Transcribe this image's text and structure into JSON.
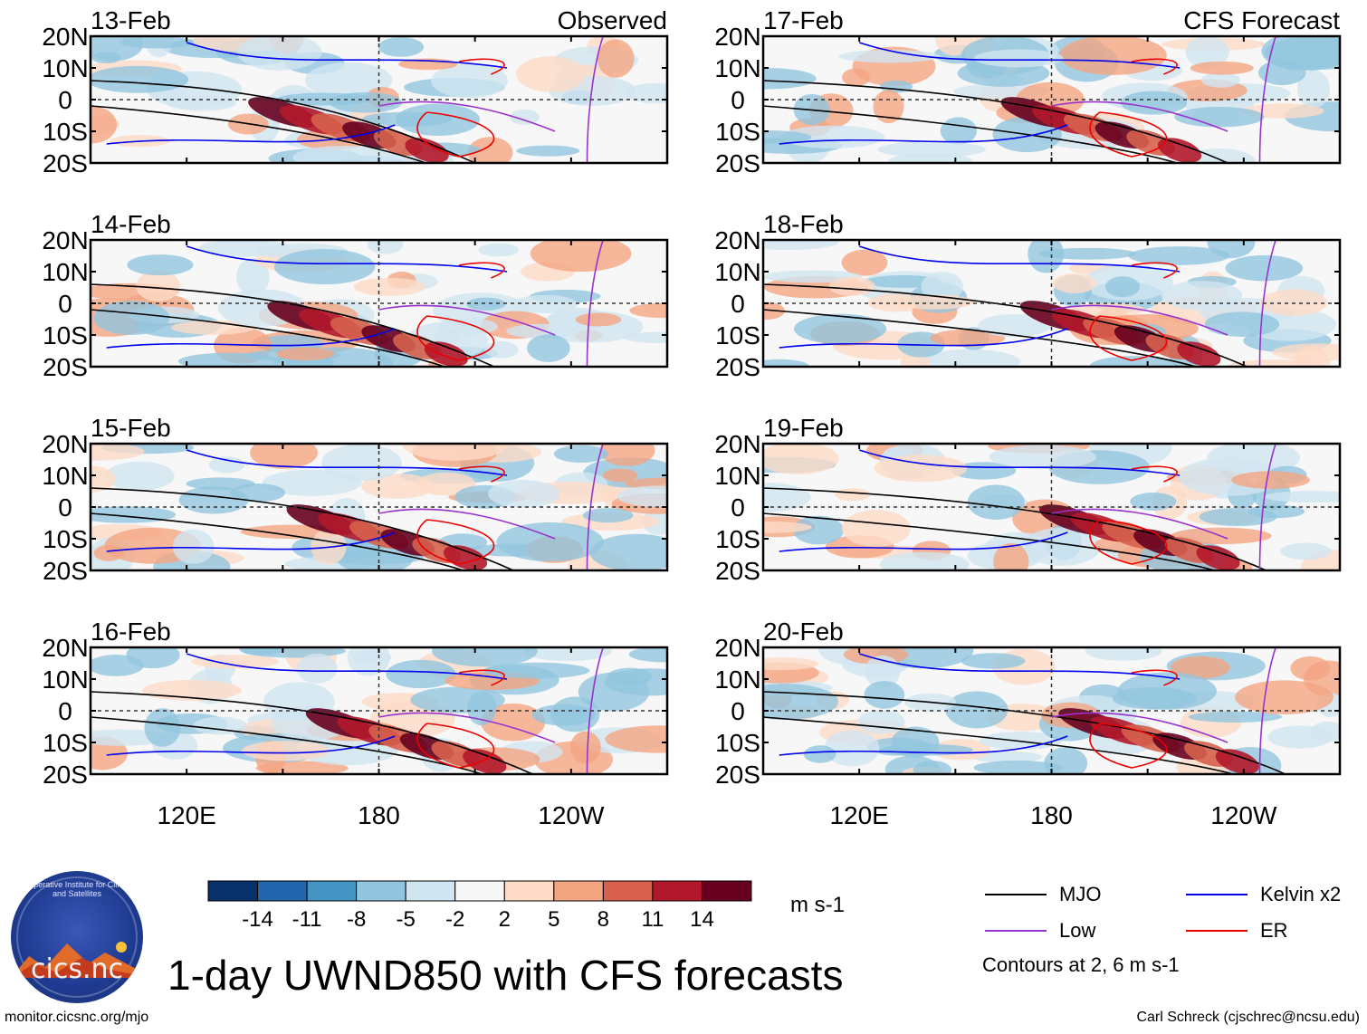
{
  "title": "1-day UWND850 with CFS forecasts",
  "footer": {
    "left": "monitor.cicsnc.org/mjo",
    "right": "Carl Schreck (cjschrec@ncsu.edu)"
  },
  "logo": {
    "text": "cics.nc",
    "arc_text": "Cooperative Institute for Climate and Satellites"
  },
  "colorbar": {
    "colors": [
      "#08306b",
      "#2166ac",
      "#4393c3",
      "#92c5de",
      "#d1e5f0",
      "#f7f7f7",
      "#fddbc7",
      "#f4a582",
      "#d6604d",
      "#b2182b",
      "#67001f"
    ],
    "ticks": [
      "-14",
      "-11",
      "-8",
      "-5",
      "-2",
      "2",
      "5",
      "8",
      "11",
      "14"
    ],
    "units": "m s-1"
  },
  "legend": {
    "items": [
      {
        "label": "MJO",
        "color": "#000000"
      },
      {
        "label": "Kelvin x2",
        "color": "#0000ee"
      },
      {
        "label": "Low",
        "color": "#9a32cd"
      },
      {
        "label": "ER",
        "color": "#ee0000"
      }
    ],
    "note": "Contours at 2, 6 m s-1"
  },
  "chart_data": {
    "type": "heatmap",
    "variable": "850-hPa zonal wind anomaly",
    "units": "m s-1",
    "contour_levels": [
      2,
      6
    ],
    "lat_ticks": [
      "20N",
      "10N",
      "0",
      "10S",
      "20S"
    ],
    "lon_ticks": [
      "120E",
      "180",
      "120W"
    ],
    "lat_range": [
      -20,
      20
    ],
    "lon_range": [
      90,
      270
    ],
    "panels": [
      {
        "date": "13-Feb",
        "label": "Observed",
        "column": "left"
      },
      {
        "date": "14-Feb",
        "label": "",
        "column": "left"
      },
      {
        "date": "15-Feb",
        "label": "",
        "column": "left"
      },
      {
        "date": "16-Feb",
        "label": "",
        "column": "left"
      },
      {
        "date": "17-Feb",
        "label": "CFS Forecast",
        "column": "right"
      },
      {
        "date": "18-Feb",
        "label": "",
        "column": "right"
      },
      {
        "date": "19-Feb",
        "label": "",
        "column": "right"
      },
      {
        "date": "20-Feb",
        "label": "",
        "column": "right"
      }
    ]
  }
}
